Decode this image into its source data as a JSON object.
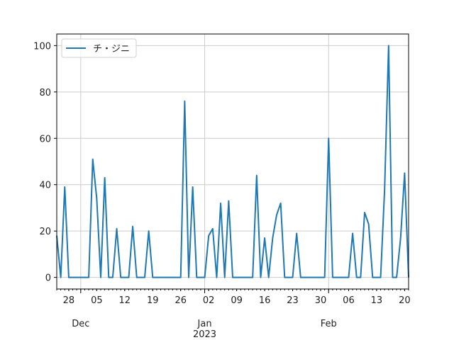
{
  "chart_data": {
    "type": "line",
    "title": "",
    "xlabel": "",
    "ylabel": "",
    "x_start": "2022-11-25",
    "xlim": [
      "2022-11-25",
      "2023-02-21"
    ],
    "ylim": [
      -5,
      105
    ],
    "grid": true,
    "legend_position": "top-left",
    "y_ticks": [
      0,
      20,
      40,
      60,
      80,
      100
    ],
    "y_tick_labels": [
      "0",
      "20",
      "40",
      "60",
      "80",
      "100"
    ],
    "x_minor_ticks": [
      {
        "date": "2022-11-28",
        "label": "28"
      },
      {
        "date": "2022-12-05",
        "label": "05"
      },
      {
        "date": "2022-12-12",
        "label": "12"
      },
      {
        "date": "2022-12-19",
        "label": "19"
      },
      {
        "date": "2022-12-26",
        "label": "26"
      },
      {
        "date": "2023-01-02",
        "label": "02"
      },
      {
        "date": "2023-01-09",
        "label": "09"
      },
      {
        "date": "2023-01-16",
        "label": "16"
      },
      {
        "date": "2023-01-23",
        "label": "23"
      },
      {
        "date": "2023-01-30",
        "label": "30"
      },
      {
        "date": "2023-02-06",
        "label": "06"
      },
      {
        "date": "2023-02-13",
        "label": "13"
      },
      {
        "date": "2023-02-20",
        "label": "20"
      }
    ],
    "x_major_ticks": [
      {
        "date": "2022-12-01",
        "label": "Dec",
        "sublabel": ""
      },
      {
        "date": "2023-01-01",
        "label": "Jan",
        "sublabel": "2023"
      },
      {
        "date": "2023-02-01",
        "label": "Feb",
        "sublabel": ""
      }
    ],
    "series": [
      {
        "name": "チ・ジニ",
        "color": "#1f77b4",
        "values": [
          18,
          0,
          39,
          0,
          0,
          0,
          0,
          0,
          0,
          51,
          34,
          0,
          43,
          0,
          0,
          21,
          0,
          0,
          0,
          22,
          0,
          0,
          0,
          20,
          0,
          0,
          0,
          0,
          0,
          0,
          0,
          0,
          76,
          0,
          39,
          0,
          0,
          0,
          18,
          21,
          0,
          32,
          0,
          33,
          0,
          0,
          0,
          0,
          0,
          0,
          44,
          0,
          17,
          0,
          17,
          27,
          32,
          0,
          0,
          0,
          19,
          0,
          0,
          0,
          0,
          0,
          0,
          0,
          60,
          0,
          0,
          0,
          0,
          0,
          19,
          0,
          0,
          28,
          23,
          0,
          0,
          0,
          38,
          100,
          0,
          0,
          17,
          45,
          0
        ]
      }
    ]
  }
}
